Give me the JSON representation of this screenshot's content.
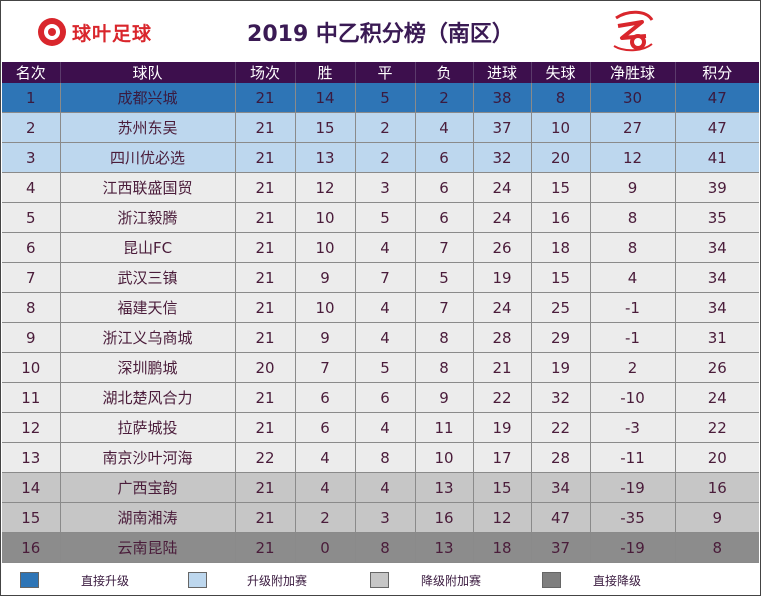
{
  "header": {
    "logo_text": "球叶足球",
    "title": "2019 中乙积分榜（南区）"
  },
  "table": {
    "columns": [
      "名次",
      "球队",
      "场次",
      "胜",
      "平",
      "负",
      "进球",
      "失球",
      "净胜球",
      "积分"
    ],
    "rows": [
      {
        "rank": "1",
        "team": "成都兴城",
        "played": "21",
        "win": "14",
        "draw": "5",
        "loss": "2",
        "gf": "38",
        "ga": "8",
        "gd": "30",
        "pts": "47",
        "zone": "champion"
      },
      {
        "rank": "2",
        "team": "苏州东吴",
        "played": "21",
        "win": "15",
        "draw": "2",
        "loss": "4",
        "gf": "37",
        "ga": "10",
        "gd": "27",
        "pts": "47",
        "zone": "promo-playoff"
      },
      {
        "rank": "3",
        "team": "四川优必选",
        "played": "21",
        "win": "13",
        "draw": "2",
        "loss": "6",
        "gf": "32",
        "ga": "20",
        "gd": "12",
        "pts": "41",
        "zone": "promo-playoff"
      },
      {
        "rank": "4",
        "team": "江西联盛国贸",
        "played": "21",
        "win": "12",
        "draw": "3",
        "loss": "6",
        "gf": "24",
        "ga": "15",
        "gd": "9",
        "pts": "39",
        "zone": "normal"
      },
      {
        "rank": "5",
        "team": "浙江毅腾",
        "played": "21",
        "win": "10",
        "draw": "5",
        "loss": "6",
        "gf": "24",
        "ga": "16",
        "gd": "8",
        "pts": "35",
        "zone": "normal"
      },
      {
        "rank": "6",
        "team": "昆山FC",
        "played": "21",
        "win": "10",
        "draw": "4",
        "loss": "7",
        "gf": "26",
        "ga": "18",
        "gd": "8",
        "pts": "34",
        "zone": "normal"
      },
      {
        "rank": "7",
        "team": "武汉三镇",
        "played": "21",
        "win": "9",
        "draw": "7",
        "loss": "5",
        "gf": "19",
        "ga": "15",
        "gd": "4",
        "pts": "34",
        "zone": "normal"
      },
      {
        "rank": "8",
        "team": "福建天信",
        "played": "21",
        "win": "10",
        "draw": "4",
        "loss": "7",
        "gf": "24",
        "ga": "25",
        "gd": "-1",
        "pts": "34",
        "zone": "normal"
      },
      {
        "rank": "9",
        "team": "浙江义乌商城",
        "played": "21",
        "win": "9",
        "draw": "4",
        "loss": "8",
        "gf": "28",
        "ga": "29",
        "gd": "-1",
        "pts": "31",
        "zone": "normal"
      },
      {
        "rank": "10",
        "team": "深圳鹏城",
        "played": "20",
        "win": "7",
        "draw": "5",
        "loss": "8",
        "gf": "21",
        "ga": "19",
        "gd": "2",
        "pts": "26",
        "zone": "normal"
      },
      {
        "rank": "11",
        "team": "湖北楚风合力",
        "played": "21",
        "win": "6",
        "draw": "6",
        "loss": "9",
        "gf": "22",
        "ga": "32",
        "gd": "-10",
        "pts": "24",
        "zone": "normal"
      },
      {
        "rank": "12",
        "team": "拉萨城投",
        "played": "21",
        "win": "6",
        "draw": "4",
        "loss": "11",
        "gf": "19",
        "ga": "22",
        "gd": "-3",
        "pts": "22",
        "zone": "normal"
      },
      {
        "rank": "13",
        "team": "南京沙叶河海",
        "played": "22",
        "win": "4",
        "draw": "8",
        "loss": "10",
        "gf": "17",
        "ga": "28",
        "gd": "-11",
        "pts": "20",
        "zone": "normal"
      },
      {
        "rank": "14",
        "team": "广西宝韵",
        "played": "21",
        "win": "4",
        "draw": "4",
        "loss": "13",
        "gf": "15",
        "ga": "34",
        "gd": "-19",
        "pts": "16",
        "zone": "releg-playoff"
      },
      {
        "rank": "15",
        "team": "湖南湘涛",
        "played": "21",
        "win": "2",
        "draw": "3",
        "loss": "16",
        "gf": "12",
        "ga": "47",
        "gd": "-35",
        "pts": "9",
        "zone": "releg-playoff"
      },
      {
        "rank": "16",
        "team": "云南昆陆",
        "played": "21",
        "win": "0",
        "draw": "8",
        "loss": "13",
        "gf": "18",
        "ga": "37",
        "gd": "-19",
        "pts": "8",
        "zone": "releg"
      }
    ]
  },
  "legend": [
    {
      "label": "直接升级",
      "color": "#2e75b6"
    },
    {
      "label": "升级附加赛",
      "color": "#bdd7ee"
    },
    {
      "label": "降级附加赛",
      "color": "#c6c6c6"
    },
    {
      "label": "直接降级",
      "color": "#7f7f7f"
    }
  ],
  "colors": {
    "header_bg": "#3d0f4d",
    "title": "#3a1a54",
    "logo": "#d9262c"
  },
  "icons": {
    "left_logo": "football-logo-icon",
    "right_emblem": "league-emblem-icon"
  }
}
